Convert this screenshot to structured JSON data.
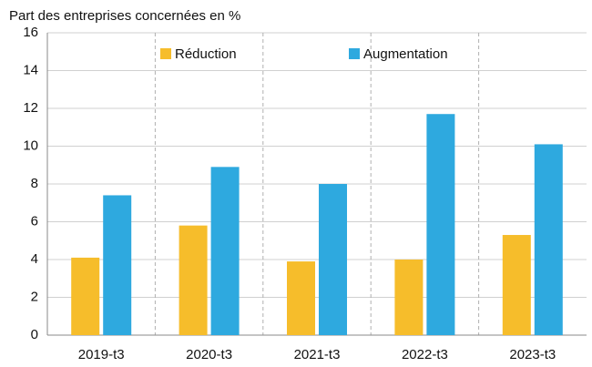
{
  "chart_data": {
    "type": "bar",
    "y_axis_label": "Part des entreprises concernées en %",
    "categories": [
      "2019-t3",
      "2020-t3",
      "2021-t3",
      "2022-t3",
      "2023-t3"
    ],
    "series": [
      {
        "name": "Réduction",
        "color": "#f6bd2b",
        "values": [
          4.1,
          5.8,
          3.9,
          4.0,
          5.3
        ]
      },
      {
        "name": "Augmentation",
        "color": "#2ea9df",
        "values": [
          7.4,
          8.9,
          8.0,
          11.7,
          10.1
        ]
      }
    ],
    "ylim": [
      0,
      16
    ],
    "yticks": [
      0,
      2,
      4,
      6,
      8,
      10,
      12,
      14,
      16
    ],
    "grid": true,
    "legend": "top"
  }
}
